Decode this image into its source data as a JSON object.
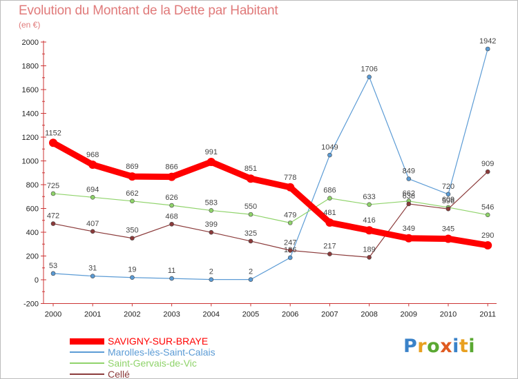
{
  "header": {
    "title": "Evolution du Montant de la Dette par Habitant",
    "unit": "(en €)"
  },
  "logo": {
    "text": "Proxiti",
    "colors": [
      "#3a82c8",
      "#e8a020",
      "#5aa832",
      "#e05a20",
      "#3a82c8",
      "#e8a020",
      "#5aa832"
    ]
  },
  "chart_data": {
    "type": "line",
    "title": "Evolution du Montant de la Dette par Habitant",
    "ylabel": "(en €)",
    "xlabel": "",
    "ylim": [
      -200,
      2000
    ],
    "yticks": [
      -200,
      0,
      200,
      400,
      600,
      800,
      1000,
      1200,
      1400,
      1600,
      1800,
      2000
    ],
    "x": [
      "2000",
      "2001",
      "2002",
      "2003",
      "2004",
      "2005",
      "2006",
      "2007",
      "2008",
      "2009",
      "2010",
      "2011"
    ],
    "legend_position": "bottom-left",
    "grid": false,
    "series": [
      {
        "name": "SAVIGNY-SUR-BRAYE",
        "color": "#ff0000",
        "values": [
          1152,
          968,
          869,
          866,
          991,
          851,
          778,
          481,
          416,
          349,
          345,
          290
        ]
      },
      {
        "name": "Marolles-lès-Saint-Calais",
        "color": "#5b9bd5",
        "values": [
          53,
          31,
          19,
          11,
          2,
          2,
          186,
          1049,
          1706,
          849,
          720,
          1942
        ]
      },
      {
        "name": "Saint-Gervais-de-Vic",
        "color": "#8fd36a",
        "values": [
          725,
          694,
          662,
          626,
          583,
          550,
          479,
          686,
          633,
          662,
          609,
          546
        ]
      },
      {
        "name": "Cellé",
        "color": "#8b3a3a",
        "values": [
          472,
          407,
          350,
          468,
          399,
          325,
          247,
          217,
          189,
          638,
          596,
          909
        ]
      }
    ]
  }
}
